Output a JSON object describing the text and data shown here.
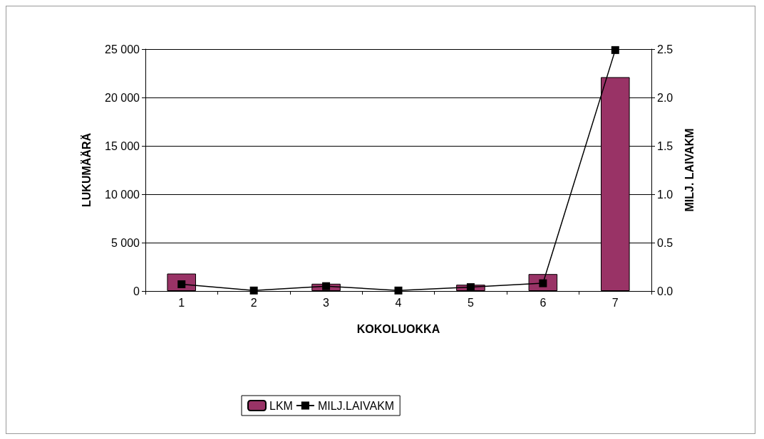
{
  "chart_data": {
    "type": "bar",
    "xlabel": "KOKOLUOKKA",
    "ylabel": "LUKUMÄÄRÄ",
    "y2label": "MILJ. LAIVAKM",
    "categories": [
      "1",
      "2",
      "3",
      "4",
      "5",
      "6",
      "7"
    ],
    "series": [
      {
        "name": "LKM",
        "color": "#993366",
        "values": [
          1800,
          null,
          750,
          null,
          650,
          1750,
          22100
        ]
      },
      {
        "name": "MILJ.LAIVAKM",
        "type": "line",
        "axis": "y2",
        "color": "#000000",
        "marker": "square",
        "values": [
          0.07,
          0.005,
          0.05,
          0.005,
          0.04,
          0.08,
          2.49
        ]
      }
    ],
    "ylim": [
      0,
      25000
    ],
    "yticks": [
      {
        "value": 0,
        "label": "0"
      },
      {
        "value": 5000,
        "label": "5 000"
      },
      {
        "value": 10000,
        "label": "10 000"
      },
      {
        "value": 15000,
        "label": "15 000"
      },
      {
        "value": 20000,
        "label": "20 000"
      },
      {
        "value": 25000,
        "label": "25 000"
      }
    ],
    "y2lim": [
      0,
      2.5
    ],
    "y2ticks": [
      {
        "value": 0,
        "label": "0.0"
      },
      {
        "value": 0.5,
        "label": "0.5"
      },
      {
        "value": 1,
        "label": "1.0"
      },
      {
        "value": 1.5,
        "label": "1.5"
      },
      {
        "value": 2,
        "label": "2.0"
      },
      {
        "value": 2.5,
        "label": "2.5"
      }
    ],
    "grid": "y",
    "legend": "bottom"
  }
}
